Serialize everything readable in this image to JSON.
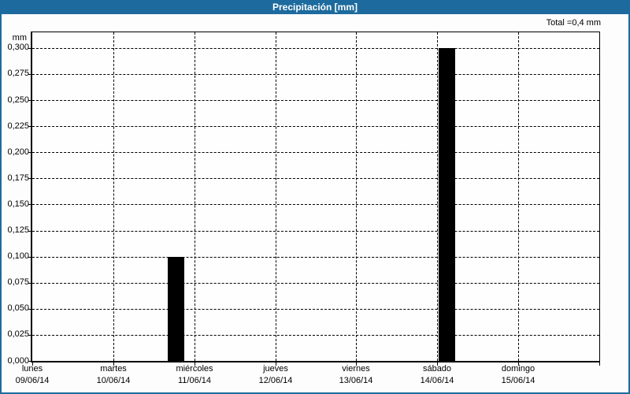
{
  "colors": {
    "accent_blue": "#1d6b9e",
    "bar_color": "#000000",
    "grid_color": "#000000",
    "background": "#fdfdfd"
  },
  "chart_data": {
    "type": "bar",
    "title": "Precipitación [mm]",
    "total_label": "Total =0,4 mm",
    "total_value": 0.4,
    "y_unit": "mm",
    "ylabel": "mm",
    "xlabel": "",
    "ylim": [
      0,
      0.315
    ],
    "y_step": 0.025,
    "grid_style": "dashed",
    "legend": "none",
    "y_ticks": [
      {
        "label": "0,000",
        "value": 0.0
      },
      {
        "label": "0,025",
        "value": 0.025
      },
      {
        "label": "0,050",
        "value": 0.05
      },
      {
        "label": "0,075",
        "value": 0.075
      },
      {
        "label": "0,100",
        "value": 0.1
      },
      {
        "label": "0,125",
        "value": 0.125
      },
      {
        "label": "0,150",
        "value": 0.15
      },
      {
        "label": "0,175",
        "value": 0.175
      },
      {
        "label": "0,200",
        "value": 0.2
      },
      {
        "label": "0,225",
        "value": 0.225
      },
      {
        "label": "0,250",
        "value": 0.25
      },
      {
        "label": "0,275",
        "value": 0.275
      },
      {
        "label": "0,300",
        "value": 0.3
      }
    ],
    "x_days": 7,
    "x_ticks": [
      {
        "day": "lunes",
        "date": "09/06/14"
      },
      {
        "day": "martes",
        "date": "10/06/14"
      },
      {
        "day": "miércoles",
        "date": "11/06/14"
      },
      {
        "day": "jueves",
        "date": "12/06/14"
      },
      {
        "day": "viernes",
        "date": "13/06/14"
      },
      {
        "day": "sábado",
        "date": "14/06/14"
      },
      {
        "day": "domingo",
        "date": "15/06/14"
      }
    ],
    "bars": [
      {
        "value": 0.1,
        "value_label": "0,100",
        "x_start_frac": 0.2389,
        "x_end_frac": 0.2681,
        "nearest_label": "miércoles 11/06/14"
      },
      {
        "value": 0.3,
        "value_label": "0,300",
        "x_start_frac": 0.7167,
        "x_end_frac": 0.7458,
        "nearest_label": "sábado 14/06/14"
      }
    ]
  }
}
